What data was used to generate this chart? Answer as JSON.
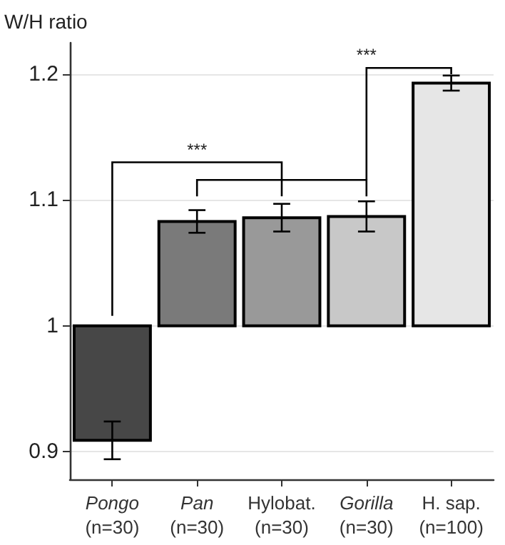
{
  "chart_data": {
    "type": "bar",
    "ylabel": "W/H ratio",
    "categories": [
      "Pongo\n(n=30)",
      "Pan\n(n=30)",
      "Hylobat.\n(n=30)",
      "Gorilla\n(n=30)",
      "H. sap.\n(n=100)"
    ],
    "base": [
      1,
      1,
      1,
      1,
      1
    ],
    "values": [
      -0.091,
      0.083,
      0.086,
      0.087,
      0.193
    ],
    "errors": [
      0.015,
      0.009,
      0.011,
      0.012,
      0.006
    ],
    "colors": [
      "#474747",
      "#7a7a7a",
      "#999999",
      "#c8c8c8",
      "#e6e6e6"
    ],
    "ylim": [
      0.878,
      1.225
    ],
    "yticks": [
      0.9,
      1,
      1.1,
      1.2
    ],
    "grid": "y",
    "annotations": [
      "***",
      "***"
    ]
  }
}
